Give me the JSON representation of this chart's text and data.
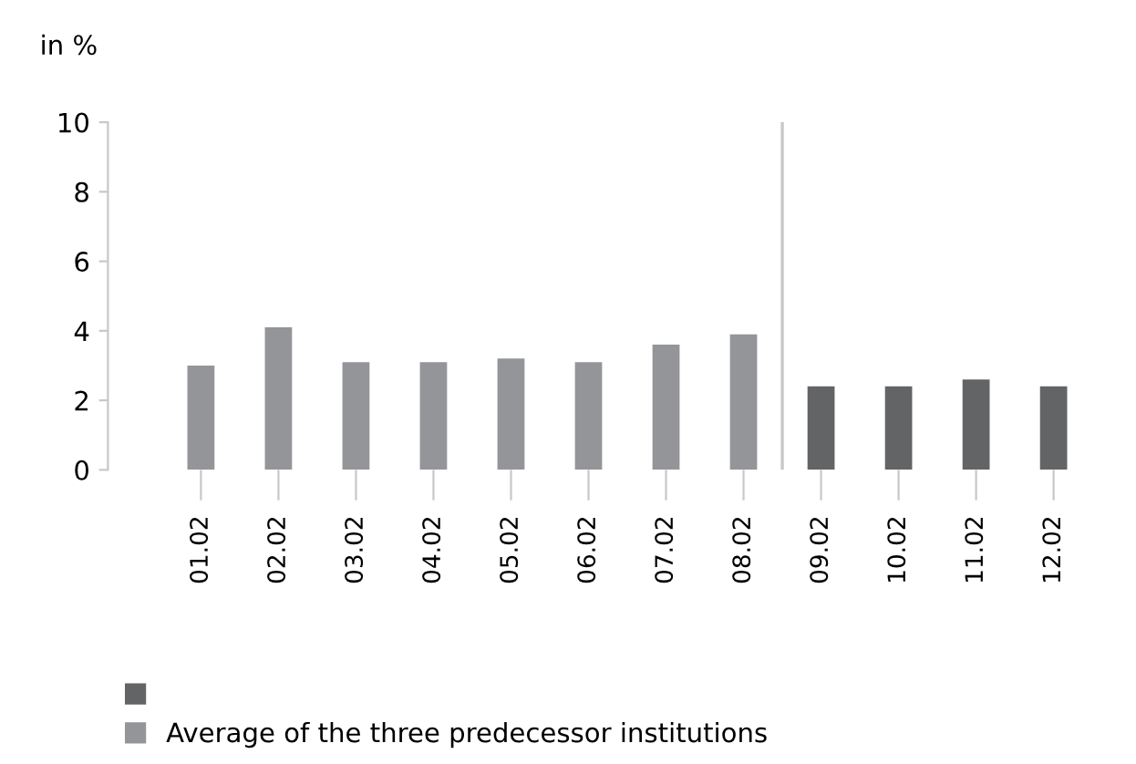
{
  "chart_data": {
    "type": "bar",
    "ylabel": "in %",
    "categories": [
      "01.02",
      "02.02",
      "03.02",
      "04.02",
      "05.02",
      "06.02",
      "07.02",
      "08.02",
      "09.02",
      "10.02",
      "11.02",
      "12.02"
    ],
    "series": [
      {
        "color": "#636466",
        "values": [
          null,
          null,
          null,
          null,
          null,
          null,
          null,
          null,
          2.4,
          2.4,
          2.6,
          2.4
        ]
      },
      {
        "name": "Average of the three predecessor institutions",
        "color": "#939598",
        "values": [
          3.0,
          4.1,
          3.1,
          3.1,
          3.2,
          3.1,
          3.6,
          3.9,
          null,
          null,
          null,
          null
        ]
      }
    ],
    "ylim": [
      0,
      10
    ],
    "yticks": [
      0,
      2,
      4,
      6,
      8,
      10
    ],
    "grid": false,
    "legend": "bottom"
  }
}
